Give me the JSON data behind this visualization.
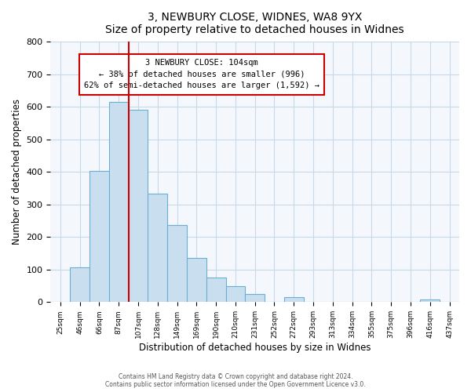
{
  "title": "3, NEWBURY CLOSE, WIDNES, WA8 9YX",
  "subtitle": "Size of property relative to detached houses in Widnes",
  "xlabel": "Distribution of detached houses by size in Widnes",
  "ylabel": "Number of detached properties",
  "bin_labels": [
    "25sqm",
    "46sqm",
    "66sqm",
    "87sqm",
    "107sqm",
    "128sqm",
    "149sqm",
    "169sqm",
    "190sqm",
    "210sqm",
    "231sqm",
    "252sqm",
    "272sqm",
    "293sqm",
    "313sqm",
    "334sqm",
    "355sqm",
    "375sqm",
    "396sqm",
    "416sqm",
    "437sqm"
  ],
  "bar_heights": [
    0,
    106,
    403,
    615,
    590,
    333,
    236,
    136,
    76,
    49,
    25,
    0,
    15,
    0,
    0,
    0,
    0,
    0,
    0,
    8,
    0
  ],
  "bar_color": "#c9dff0",
  "bar_edgecolor": "#6aaed6",
  "property_line_x": 4,
  "property_line_color": "#cc0000",
  "ylim": [
    0,
    800
  ],
  "yticks": [
    0,
    100,
    200,
    300,
    400,
    500,
    600,
    700,
    800
  ],
  "annotation_title": "3 NEWBURY CLOSE: 104sqm",
  "annotation_line1": "← 38% of detached houses are smaller (996)",
  "annotation_line2": "62% of semi-detached houses are larger (1,592) →",
  "annotation_box_color": "#cc0000",
  "footer1": "Contains HM Land Registry data © Crown copyright and database right 2024.",
  "footer2": "Contains public sector information licensed under the Open Government Licence v3.0.",
  "ax_facecolor": "#f4f8fc",
  "grid_color": "#c8d8e8"
}
